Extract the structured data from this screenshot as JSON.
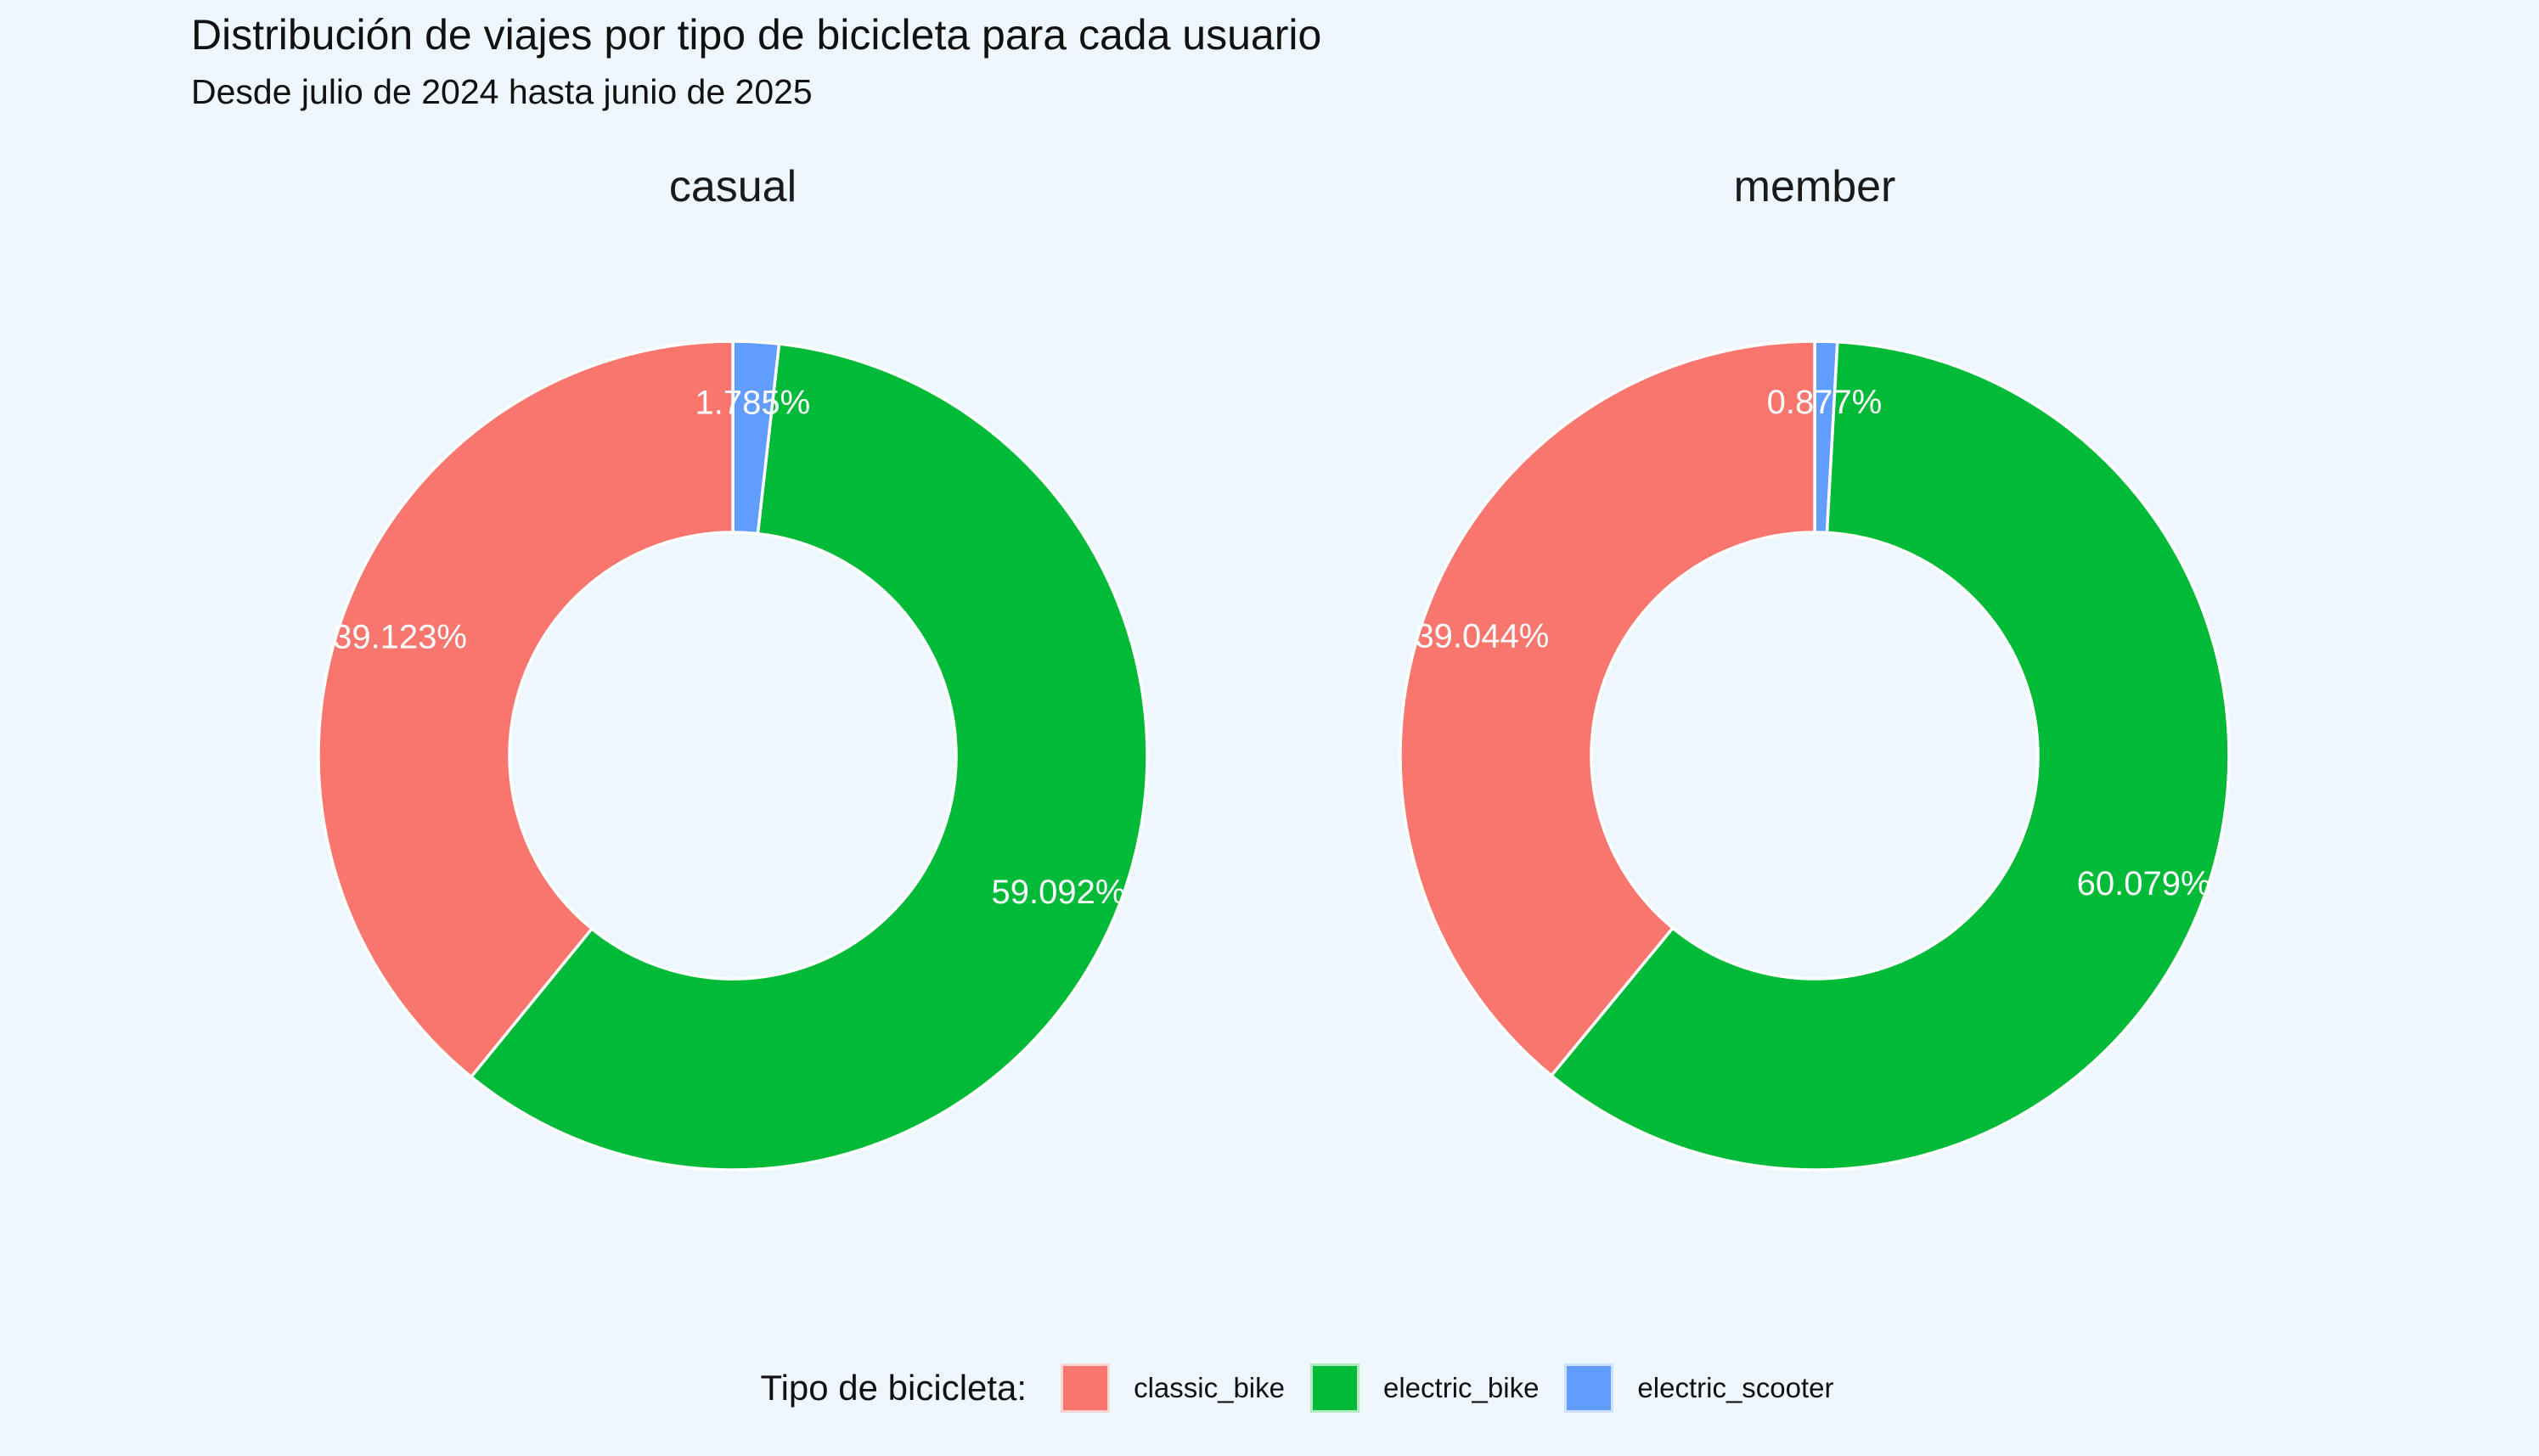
{
  "header": {
    "title": "Distribución de viajes por tipo de bicicleta para cada usuario",
    "subtitle": "Desde julio de 2024 hasta junio de 2025"
  },
  "colors": {
    "classic_bike": "#F8766D",
    "electric_bike": "#00BA38",
    "electric_scooter": "#619CFF",
    "background": "#EFF7FE"
  },
  "legend": {
    "title": "Tipo de bicicleta:",
    "items": [
      {
        "label": "classic_bike",
        "color": "#F8766D"
      },
      {
        "label": "electric_bike",
        "color": "#00BA38"
      },
      {
        "label": "electric_scooter",
        "color": "#619CFF"
      }
    ]
  },
  "chart_data": [
    {
      "type": "pie",
      "facet": "casual",
      "title": "",
      "hole": true,
      "slices": [
        {
          "category": "electric_scooter",
          "value": 1.785,
          "label": "1.785%"
        },
        {
          "category": "electric_bike",
          "value": 59.092,
          "label": "59.092%"
        },
        {
          "category": "classic_bike",
          "value": 39.123,
          "label": "39.123%"
        }
      ]
    },
    {
      "type": "pie",
      "facet": "member",
      "title": "",
      "hole": true,
      "slices": [
        {
          "category": "electric_scooter",
          "value": 0.877,
          "label": "0.877%"
        },
        {
          "category": "electric_bike",
          "value": 60.079,
          "label": "60.079%"
        },
        {
          "category": "classic_bike",
          "value": 39.044,
          "label": "39.044%"
        }
      ]
    }
  ]
}
